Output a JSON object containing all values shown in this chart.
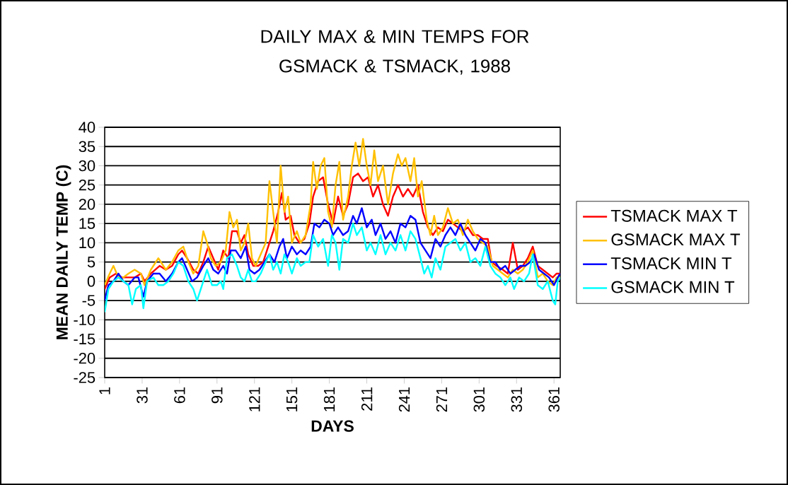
{
  "chart_data": {
    "type": "line",
    "title": "DAILY MAX & MIN TEMPS FOR GSMACK & TSMACK, 1988",
    "xlabel": "DAYS",
    "ylabel": "MEAN DAILY TEMP (C)",
    "xlim": [
      1,
      366
    ],
    "xticks": [
      1,
      31,
      61,
      91,
      121,
      151,
      181,
      211,
      241,
      271,
      301,
      331,
      361
    ],
    "ylim": [
      -25,
      40
    ],
    "yticks": [
      -25,
      -20,
      -15,
      -10,
      -5,
      0,
      5,
      10,
      15,
      20,
      25,
      30,
      35,
      40
    ],
    "grid": "y",
    "legend": "right",
    "series": [
      {
        "name": "TSMACK MAX T",
        "color": "#ff0000",
        "x": [
          1,
          5,
          10,
          15,
          20,
          25,
          30,
          33,
          38,
          45,
          50,
          55,
          60,
          63,
          67,
          72,
          76,
          80,
          84,
          88,
          92,
          96,
          100,
          103,
          107,
          110,
          113,
          116,
          120,
          124,
          128,
          131,
          136,
          140,
          143,
          146,
          150,
          153,
          157,
          161,
          165,
          168,
          172,
          176,
          180,
          184,
          188,
          192,
          196,
          200,
          204,
          208,
          212,
          216,
          220,
          224,
          228,
          232,
          236,
          240,
          244,
          248,
          252,
          256,
          260,
          264,
          268,
          272,
          276,
          280,
          284,
          288,
          292,
          296,
          300,
          304,
          308,
          311,
          315,
          320,
          324,
          328,
          332,
          336,
          340,
          344,
          348,
          352,
          356,
          360,
          363,
          366
        ],
        "values": [
          -2,
          1,
          2,
          1,
          1,
          1,
          2,
          0,
          2,
          4,
          3,
          4,
          7,
          8,
          6,
          3,
          2,
          5,
          9,
          6,
          3,
          8,
          6,
          13,
          13,
          10,
          12,
          7,
          4,
          4,
          5,
          8,
          13,
          18,
          23,
          16,
          17,
          12,
          10,
          11,
          15,
          22,
          26,
          27,
          20,
          15,
          22,
          17,
          20,
          27,
          28,
          26,
          27,
          22,
          25,
          20,
          17,
          22,
          25,
          22,
          24,
          22,
          25,
          18,
          14,
          12,
          14,
          13,
          16,
          15,
          14,
          13,
          14,
          12,
          12,
          11,
          11,
          5,
          4,
          3,
          2,
          10,
          3,
          4,
          6,
          9,
          4,
          3,
          2,
          1,
          2,
          2
        ]
      },
      {
        "name": "GSMACK MAX T",
        "color": "#ffc000",
        "x": [
          1,
          5,
          8,
          12,
          16,
          20,
          25,
          30,
          33,
          38,
          44,
          50,
          55,
          60,
          64,
          68,
          72,
          76,
          80,
          83,
          86,
          90,
          94,
          98,
          101,
          104,
          107,
          110,
          113,
          116,
          119,
          122,
          126,
          130,
          133,
          136,
          139,
          142,
          145,
          148,
          151,
          155,
          158,
          162,
          166,
          168,
          171,
          174,
          177,
          180,
          183,
          186,
          189,
          192,
          196,
          199,
          202,
          205,
          208,
          211,
          214,
          217,
          220,
          224,
          228,
          232,
          236,
          239,
          242,
          246,
          249,
          252,
          255,
          259,
          262,
          265,
          268,
          272,
          276,
          280,
          284,
          288,
          292,
          296,
          300,
          304,
          308,
          312,
          316,
          320,
          324,
          328,
          332,
          336,
          340,
          344,
          348,
          352,
          356,
          360,
          363,
          366
        ],
        "values": [
          -1,
          2,
          4,
          1,
          1,
          2,
          3,
          2,
          -1,
          3,
          6,
          3,
          5,
          8,
          9,
          5,
          2,
          4,
          13,
          10,
          6,
          4,
          5,
          8,
          18,
          14,
          16,
          8,
          10,
          15,
          6,
          4,
          7,
          10,
          26,
          18,
          10,
          30,
          18,
          22,
          10,
          13,
          10,
          12,
          20,
          31,
          24,
          30,
          32,
          18,
          14,
          25,
          31,
          16,
          22,
          30,
          36,
          30,
          37,
          30,
          25,
          34,
          26,
          30,
          20,
          28,
          33,
          30,
          32,
          26,
          32,
          22,
          26,
          16,
          12,
          17,
          12,
          14,
          19,
          15,
          16,
          12,
          16,
          13,
          11,
          10,
          9,
          4,
          3,
          2,
          1,
          3,
          2,
          3,
          5,
          8,
          1,
          2,
          0,
          -1,
          1,
          1
        ]
      },
      {
        "name": "TSMACK MIN T",
        "color": "#0000ff",
        "x": [
          1,
          4,
          8,
          12,
          16,
          20,
          25,
          28,
          32,
          35,
          40,
          45,
          50,
          55,
          60,
          63,
          67,
          71,
          75,
          80,
          84,
          88,
          92,
          96,
          99,
          102,
          106,
          110,
          114,
          117,
          121,
          125,
          129,
          133,
          137,
          141,
          144,
          147,
          151,
          155,
          158,
          162,
          166,
          169,
          173,
          177,
          181,
          184,
          188,
          192,
          196,
          200,
          203,
          207,
          211,
          215,
          218,
          222,
          226,
          230,
          234,
          238,
          242,
          246,
          250,
          254,
          258,
          262,
          266,
          270,
          274,
          278,
          282,
          286,
          290,
          294,
          298,
          302,
          306,
          310,
          314,
          318,
          322,
          326,
          330,
          334,
          338,
          342,
          345,
          349,
          353,
          357,
          361,
          364,
          366
        ],
        "values": [
          -5,
          -1,
          0,
          2,
          0,
          -1,
          1,
          1,
          -4,
          0,
          2,
          2,
          0,
          2,
          5,
          6,
          3,
          0,
          1,
          4,
          6,
          3,
          2,
          4,
          2,
          8,
          8,
          6,
          9,
          3,
          2,
          3,
          5,
          7,
          5,
          9,
          11,
          6,
          9,
          7,
          8,
          7,
          9,
          15,
          14,
          16,
          15,
          12,
          14,
          12,
          13,
          17,
          15,
          19,
          14,
          16,
          12,
          15,
          11,
          13,
          10,
          15,
          14,
          17,
          16,
          10,
          8,
          6,
          11,
          9,
          12,
          14,
          12,
          15,
          12,
          10,
          8,
          11,
          10,
          5,
          5,
          3,
          4,
          2,
          3,
          4,
          4,
          5,
          7,
          3,
          2,
          1,
          -1,
          1,
          2
        ]
      },
      {
        "name": "GSMACK MIN T",
        "color": "#00ffff",
        "x": [
          1,
          4,
          8,
          12,
          16,
          20,
          23,
          26,
          30,
          32,
          35,
          40,
          44,
          48,
          52,
          56,
          60,
          64,
          68,
          72,
          75,
          79,
          83,
          87,
          91,
          94,
          96,
          99,
          103,
          107,
          110,
          113,
          116,
          119,
          122,
          126,
          130,
          133,
          136,
          139,
          142,
          145,
          148,
          151,
          155,
          158,
          162,
          165,
          168,
          172,
          176,
          180,
          183,
          186,
          189,
          192,
          196,
          200,
          203,
          207,
          211,
          214,
          218,
          222,
          226,
          230,
          234,
          238,
          242,
          246,
          250,
          254,
          257,
          260,
          263,
          266,
          270,
          274,
          278,
          282,
          286,
          290,
          294,
          298,
          302,
          306,
          310,
          314,
          318,
          322,
          326,
          329,
          333,
          337,
          341,
          344,
          348,
          352,
          356,
          360,
          362,
          364,
          366
        ],
        "values": [
          -8,
          -2,
          0,
          1,
          0,
          -1,
          -6,
          -2,
          -1,
          -7,
          0,
          1,
          -1,
          -1,
          0,
          2,
          5,
          4,
          0,
          -2,
          -5,
          -1,
          3,
          -1,
          -1,
          0,
          -2,
          6,
          7,
          4,
          1,
          0,
          3,
          0,
          0,
          2,
          5,
          7,
          3,
          5,
          2,
          7,
          5,
          2,
          6,
          4,
          5,
          5,
          12,
          9,
          11,
          4,
          12,
          10,
          3,
          11,
          10,
          15,
          12,
          14,
          8,
          10,
          7,
          12,
          7,
          10,
          8,
          12,
          8,
          13,
          11,
          6,
          2,
          4,
          1,
          6,
          3,
          9,
          10,
          11,
          8,
          10,
          5,
          6,
          4,
          9,
          4,
          2,
          1,
          -1,
          1,
          -2,
          1,
          0,
          2,
          7,
          -1,
          -2,
          0,
          -5,
          -6,
          0,
          1
        ]
      }
    ]
  }
}
